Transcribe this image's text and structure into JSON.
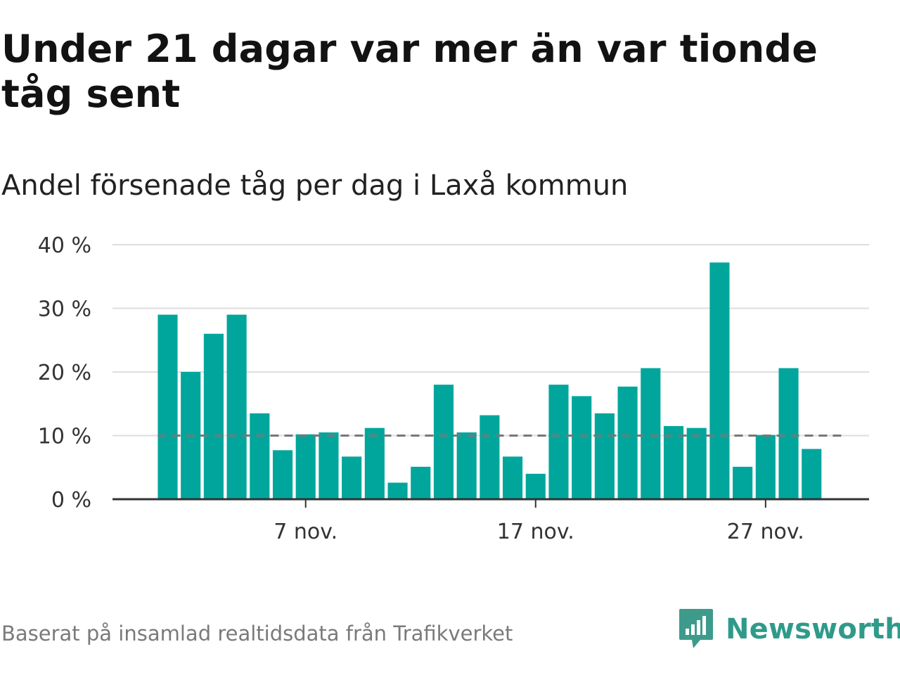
{
  "chart_data": {
    "type": "bar",
    "title": "Under 21 dagar var mer än var tionde tåg sent",
    "subtitle": "Andel försenade tåg per dag i Laxå kommun",
    "xlabel": "",
    "ylabel": "",
    "x_start_day": 1,
    "x_range_days": [
      -1.4,
      31.5
    ],
    "x_ticks": [
      {
        "day": 7,
        "label": "7 nov."
      },
      {
        "day": 17,
        "label": "17 nov."
      },
      {
        "day": 27,
        "label": "27 nov."
      }
    ],
    "y_ticks": [
      {
        "value": 0,
        "label": "0 %"
      },
      {
        "value": 10,
        "label": "10 %"
      },
      {
        "value": 20,
        "label": "20 %"
      },
      {
        "value": 30,
        "label": "30 %"
      },
      {
        "value": 40,
        "label": "40 %"
      }
    ],
    "ylim": [
      0,
      40
    ],
    "grid": true,
    "bar_color": "#00a69c",
    "reference_line": {
      "value": 10,
      "color": "#777777"
    },
    "values": [
      29,
      20,
      26,
      29,
      13.5,
      7.7,
      10.2,
      10.5,
      6.7,
      11.2,
      2.6,
      5.1,
      18,
      10.5,
      13.2,
      6.7,
      4,
      18,
      16.2,
      13.5,
      17.7,
      20.6,
      11.5,
      11.2,
      37.2,
      5.1,
      10.1,
      20.6,
      7.9
    ]
  },
  "footer": {
    "source": "Baserat på insamlad realtidsdata från Trafikverket",
    "brand": "Newsworthy"
  },
  "colors": {
    "brand": "#2f9a8a",
    "logo": "#3d9b8c"
  }
}
